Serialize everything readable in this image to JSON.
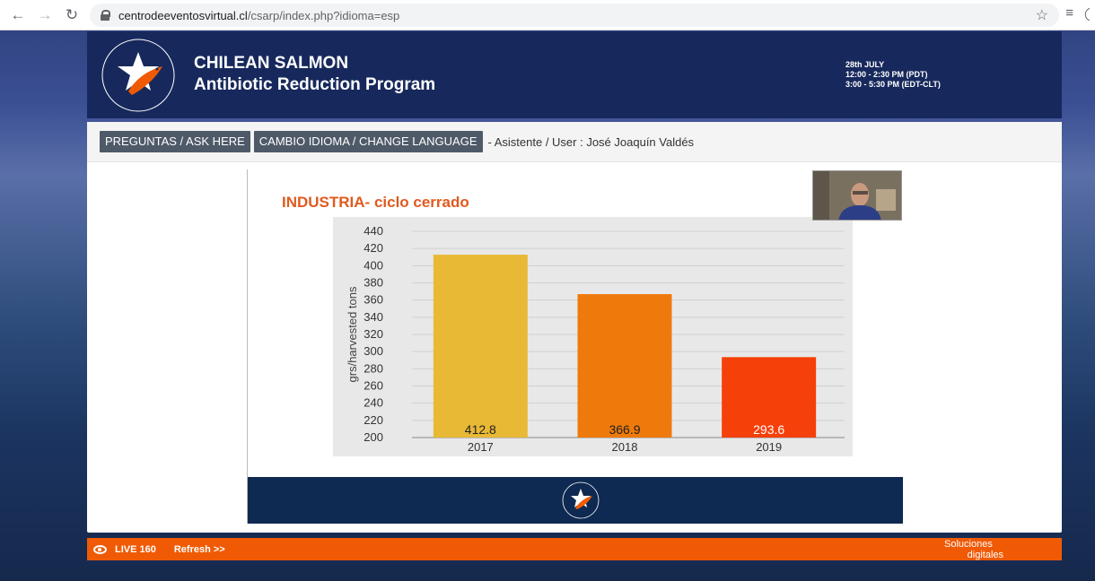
{
  "browser": {
    "url_host": "centrodeeventosvirtual.cl",
    "url_path": "/csarp/index.php?idioma=esp"
  },
  "header": {
    "title": "CHILEAN SALMON",
    "subtitle": "Antibiotic Reduction Program",
    "logo_text_top": "CHILEAN SALMON",
    "logo_text_bottom": "ANTIBIOTIC REDUCTION PROGRAM",
    "event_date": "28th JULY",
    "event_time_pdt": "12:00 - 2:30 PM (PDT)",
    "event_time_edt": "3:00 - 5:30 PM (EDT-CLT)"
  },
  "toolbar": {
    "ask_button": "PREGUNTAS / ASK HERE",
    "language_button": "CAMBIO IDIOMA / CHANGE LANGUAGE",
    "user_line": "- Asistente / User : José Joaquín Valdés"
  },
  "slide": {
    "title": "INDUSTRIA- ciclo cerrado"
  },
  "chart_data": {
    "type": "bar",
    "categories": [
      "2017",
      "2018",
      "2019"
    ],
    "values": [
      412.8,
      366.9,
      293.6
    ],
    "value_labels": [
      "412.8",
      "366.9",
      "293.6"
    ],
    "bar_colors": [
      "#e8b935",
      "#ef7a0c",
      "#f5400a"
    ],
    "label_colors": [
      "#222222",
      "#222222",
      "#ffffff"
    ],
    "title": "",
    "xlabel": "",
    "ylabel": "grs/harvested tons",
    "ylim": [
      200,
      440
    ],
    "yticks": [
      "440",
      "420",
      "400",
      "380",
      "360",
      "340",
      "320",
      "300",
      "280",
      "260",
      "240",
      "220",
      "200"
    ],
    "grid": true
  },
  "bottom_bar": {
    "live_label": "LIVE 160",
    "refresh_label": "Refresh >>",
    "brand_line1": "Soluciones",
    "brand_line2": "digitales"
  },
  "colors": {
    "header_bg": "#17295c",
    "accent_orange": "#f05a05",
    "button_bg": "#4f5a69",
    "slide_title": "#e05a1f",
    "slide_footer": "#0f2a52"
  },
  "icons": [
    "back-icon",
    "forward-icon",
    "reload-icon",
    "lock-icon",
    "star-icon",
    "reading-list-icon",
    "eye-icon"
  ]
}
